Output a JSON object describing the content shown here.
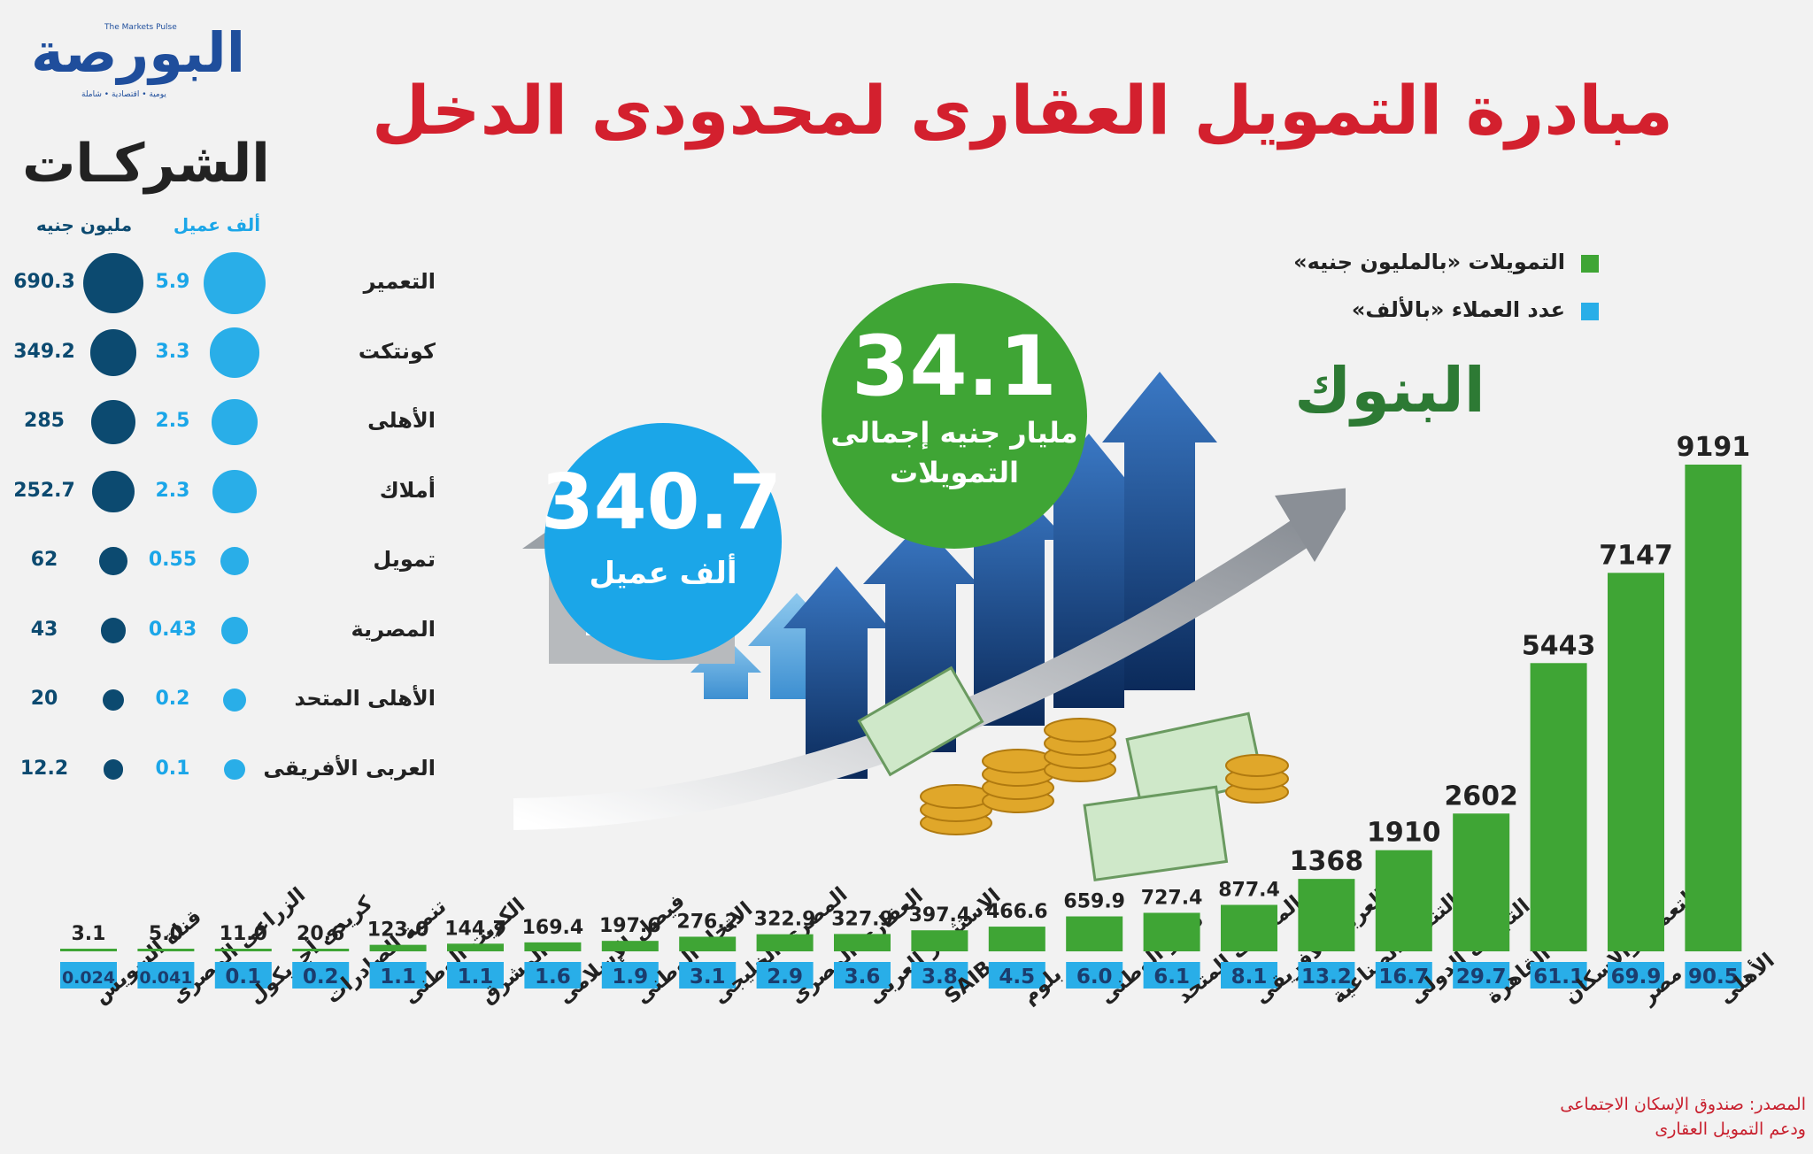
{
  "logo": {
    "name": "البورصة",
    "subtitle": "The Markets Pulse",
    "tagline": "يومية • اقتصادية • شاملة"
  },
  "title": "مبادرة التمويل العقارى لمحدودى الدخل",
  "companies": {
    "heading": "الشركـات",
    "clients_header": "ألف عميل",
    "million_header": "مليون جنيه",
    "rows": [
      {
        "name": "التعمير",
        "clients": 5.9,
        "million": 690.3,
        "clients_label": "5.9",
        "million_label": "690.3"
      },
      {
        "name": "كونتكت",
        "clients": 3.3,
        "million": 349.2,
        "clients_label": "3.3",
        "million_label": "349.2"
      },
      {
        "name": "الأهلى",
        "clients": 2.5,
        "million": 285,
        "clients_label": "2.5",
        "million_label": "285"
      },
      {
        "name": "أملاك",
        "clients": 2.3,
        "million": 252.7,
        "clients_label": "2.3",
        "million_label": "252.7"
      },
      {
        "name": "تمويل",
        "clients": 0.55,
        "million": 62,
        "clients_label": "0.55",
        "million_label": "62"
      },
      {
        "name": "المصرية",
        "clients": 0.43,
        "million": 43,
        "clients_label": "0.43",
        "million_label": "43"
      },
      {
        "name": "الأهلى المتحد",
        "clients": 0.2,
        "million": 20,
        "clients_label": "0.2",
        "million_label": "20"
      },
      {
        "name": "العربى الأفريقى",
        "clients": 0.1,
        "million": 12.2,
        "clients_label": "0.1",
        "million_label": "12.2"
      }
    ]
  },
  "summary": {
    "clients_value": "340.7",
    "clients_label": "ألف عميل",
    "finance_value": "34.1",
    "finance_label_line1": "مليار جنيه إجمالى",
    "finance_label_line2": "التمويلات"
  },
  "legend": {
    "finance": "التمويلات «بالمليون جنيه»",
    "clients": "عدد العملاء «بالألف»"
  },
  "banks_heading": "البنوك",
  "source": {
    "line1": "المصدر: صندوق الإسكان الاجتماعى",
    "line2": "ودعم التمويل العقارى"
  },
  "colors": {
    "finance": "#3fa535",
    "clients": "#29aee8",
    "dark": "#0c4a70",
    "title": "#d3202e"
  },
  "chart_data": {
    "type": "bar",
    "title": "",
    "xlabel": "",
    "ylabel": "",
    "categories": [
      "قناة السويس",
      "الزراعى المصرى",
      "كريدى أجريكول",
      "تنمية الصادرات",
      "الكويت الوطنى",
      "المشرق",
      "فيصل الإسلامى",
      "الاتحاد الوطنى",
      "المصرى الخليجى",
      "العقارى المصرى",
      "الاستثمار العربى",
      "SAIB",
      "بلوم",
      "قطر الوطنى",
      "المصرف المتحد",
      "العربى الأفريقى",
      "التنمية الصناعية",
      "التجارى الدولى",
      "القاهرة",
      "التعمير والإسكان",
      "مصر",
      "الأهلى"
    ],
    "series": [
      {
        "name": "التمويلات «بالمليون جنيه»",
        "values": [
          3.1,
          5.0,
          11.0,
          20.6,
          123.0,
          144.7,
          169.4,
          197.6,
          276.2,
          322.9,
          327.9,
          397.4,
          466.6,
          659.9,
          727.4,
          877.4,
          1368,
          1910,
          2602,
          5443,
          7147,
          9191
        ],
        "labels": [
          "3.1",
          "5.0",
          "11.0",
          "20.6",
          "123.0",
          "144.7",
          "169.4",
          "197.6",
          "276.2",
          "322.9",
          "327.9",
          "397.4",
          "466.6",
          "659.9",
          "727.4",
          "877.4",
          "1368",
          "1910",
          "2602",
          "5443",
          "7147",
          "9191"
        ]
      },
      {
        "name": "عدد العملاء «بالألف»",
        "values": [
          0.024,
          0.041,
          0.1,
          0.2,
          1.1,
          1.1,
          1.6,
          1.9,
          3.1,
          2.9,
          3.6,
          3.8,
          4.5,
          6.0,
          6.1,
          8.1,
          13.2,
          16.7,
          29.7,
          61.1,
          69.9,
          90.5
        ],
        "labels": [
          "0.024",
          "0.041",
          "0.1",
          "0.2",
          "1.1",
          "1.1",
          "1.6",
          "1.9",
          "3.1",
          "2.9",
          "3.6",
          "3.8",
          "4.5",
          "6.0",
          "6.1",
          "8.1",
          "13.2",
          "16.7",
          "29.7",
          "61.1",
          "69.9",
          "90.5"
        ]
      }
    ],
    "legend_position": "top-right",
    "grid": false
  }
}
